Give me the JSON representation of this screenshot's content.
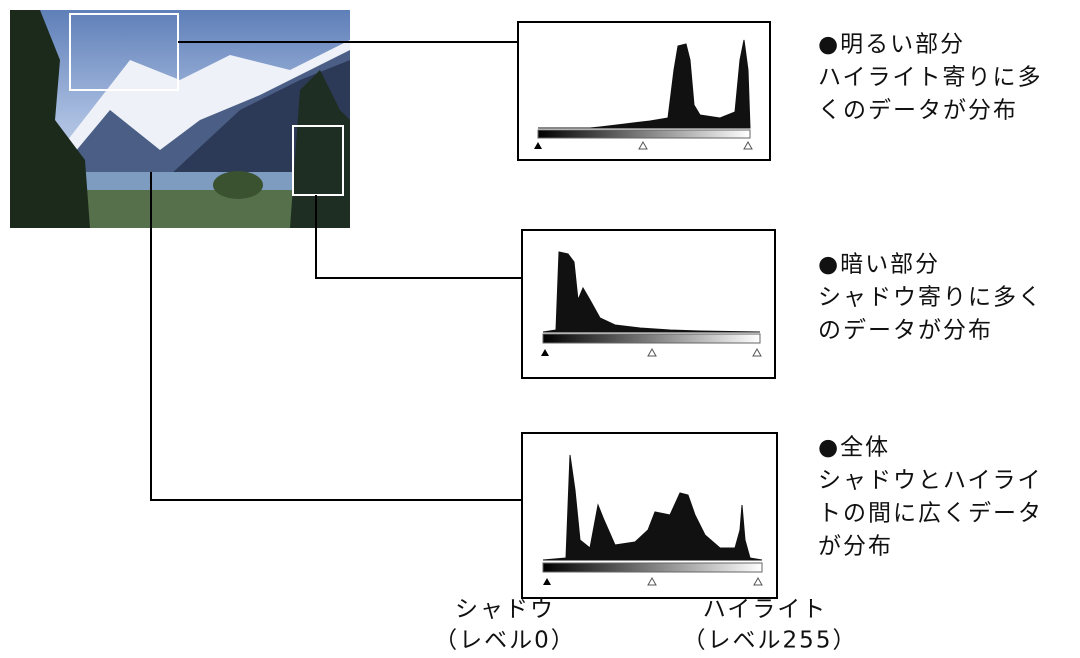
{
  "panels": [
    {
      "heading": "●明るい部分",
      "lines": [
        "ハイライト寄りに多",
        "くのデータが分布"
      ]
    },
    {
      "heading": "●暗い部分",
      "lines": [
        "シャドウ寄りに多く",
        "のデータが分布"
      ]
    },
    {
      "heading": "●全体",
      "lines": [
        "シャドウとハイライ",
        "トの間に広くデータ",
        "が分布"
      ]
    }
  ],
  "scale_labels": {
    "shadow": "シャドウ",
    "shadow_level": "（レベル0）",
    "highlight": "ハイライト",
    "highlight_level": "（レベル255）"
  }
}
